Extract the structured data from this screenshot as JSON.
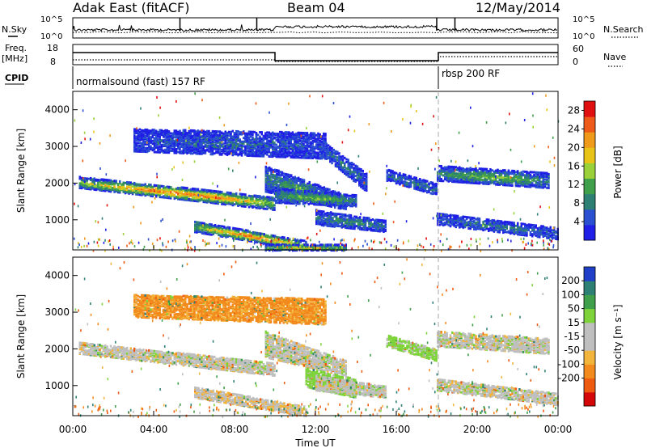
{
  "header": {
    "title_left": "Adak East (fitACF)",
    "title_center": "Beam 04",
    "title_right": "12/May/2014"
  },
  "top_panels": {
    "nsky_label": "N.Sky",
    "nsearch_label": "N.Search",
    "nsky_ticks": [
      "10^5",
      "10^0"
    ],
    "nsearch_ticks": [
      "10^5",
      "10^0"
    ],
    "freq_label": "Freq.",
    "freq_unit": "[MHz]",
    "freq_ticks": [
      "18",
      "8"
    ],
    "nave_label": "Nave",
    "nave_ticks": [
      "60",
      "0"
    ],
    "cpid_label": "CPID",
    "cpid_modes": [
      {
        "name": "normalsound (fast) 157 RF",
        "start_hour": 0
      },
      {
        "name": "rbsp 200 RF",
        "start_hour": 18
      }
    ]
  },
  "x_axis": {
    "label": "Time UT",
    "ticks": [
      "00:00",
      "04:00",
      "08:00",
      "12:00",
      "16:00",
      "20:00",
      "00:00"
    ],
    "range_hours": [
      0,
      24
    ]
  },
  "chart_data": [
    {
      "type": "heatmap",
      "name": "power",
      "ylabel": "Slant Range [km]",
      "yticks": [
        "4000",
        "3000",
        "2000",
        "1000"
      ],
      "ylim": [
        180,
        4500
      ],
      "colorbar_label": "Power [dB]",
      "colorbar_ticks": [
        "28",
        "24",
        "20",
        "16",
        "12",
        "8",
        "4"
      ],
      "colorbar_range": [
        0,
        30
      ],
      "colors": [
        "#1f1fe6",
        "#2a4fd0",
        "#2e7f74",
        "#3f9f4a",
        "#9ad13b",
        "#e8c418",
        "#f09a1c",
        "#ee5a1a",
        "#e01010"
      ],
      "bands": [
        {
          "t0": 0.3,
          "t1": 10.0,
          "r0": 1900,
          "r1": 2200,
          "r_end0": 1300,
          "r_end1": 1650,
          "peak": 26
        },
        {
          "t0": 3.0,
          "t1": 12.5,
          "r0": 2900,
          "r1": 3500,
          "r_end0": 2700,
          "r_end1": 3400,
          "peak": 6
        },
        {
          "t0": 6.0,
          "t1": 11.5,
          "r0": 700,
          "r1": 1000,
          "r_end0": 200,
          "r_end1": 450,
          "peak": 24
        },
        {
          "t0": 9.5,
          "t1": 13.5,
          "r0": 1800,
          "r1": 2500,
          "r_end0": 1300,
          "r_end1": 1700,
          "peak": 12
        },
        {
          "t0": 10.0,
          "t1": 14.0,
          "r0": 1500,
          "r1": 1900,
          "r_end0": 1400,
          "r_end1": 1700,
          "peak": 14
        },
        {
          "t0": 12.5,
          "t1": 14.5,
          "r0": 2700,
          "r1": 3100,
          "r_end0": 1800,
          "r_end1": 2300,
          "peak": 8
        },
        {
          "t0": 12.0,
          "t1": 15.5,
          "r0": 900,
          "r1": 1300,
          "r_end0": 700,
          "r_end1": 1000,
          "peak": 10
        },
        {
          "t0": 15.5,
          "t1": 18.0,
          "r0": 2100,
          "r1": 2400,
          "r_end0": 1700,
          "r_end1": 2000,
          "peak": 8
        },
        {
          "t0": 18.0,
          "t1": 23.5,
          "r0": 2100,
          "r1": 2500,
          "r_end0": 1900,
          "r_end1": 2300,
          "peak": 14
        },
        {
          "t0": 18.0,
          "t1": 24.0,
          "r0": 900,
          "r1": 1200,
          "r_end0": 500,
          "r_end1": 800,
          "peak": 8
        },
        {
          "t0": 9.5,
          "t1": 13.5,
          "r0": 200,
          "r1": 350,
          "r_end0": 200,
          "r_end1": 350,
          "peak": 18
        }
      ]
    },
    {
      "type": "heatmap",
      "name": "velocity",
      "ylabel": "Slant Range [km]",
      "yticks": [
        "4000",
        "3000",
        "2000",
        "1000"
      ],
      "ylim": [
        180,
        4500
      ],
      "colorbar_label": "Velocity [m s⁻¹]",
      "colorbar_ticks": [
        "200",
        "100",
        "50",
        "15",
        "-15",
        "-50",
        "-100",
        "-200"
      ],
      "colorbar_range": [
        -250,
        250
      ],
      "colors": [
        "#d40808",
        "#ee5a10",
        "#f28a1e",
        "#f2b43a",
        "#bfbfbf",
        "#bfbfbf",
        "#7fd33a",
        "#3f9f4a",
        "#2e7f74",
        "#1f3fc8"
      ],
      "bands": [
        {
          "t0": 0.3,
          "t1": 10.0,
          "r0": 1900,
          "r1": 2200,
          "r_end0": 1300,
          "r_end1": 1650,
          "vel": 0
        },
        {
          "t0": 3.0,
          "t1": 12.5,
          "r0": 2900,
          "r1": 3500,
          "r_end0": 2700,
          "r_end1": 3400,
          "vel": -60
        },
        {
          "t0": 6.0,
          "t1": 11.5,
          "r0": 700,
          "r1": 1000,
          "r_end0": 200,
          "r_end1": 450,
          "vel": -10
        },
        {
          "t0": 9.5,
          "t1": 13.5,
          "r0": 1800,
          "r1": 2500,
          "r_end0": 1300,
          "r_end1": 1700,
          "vel": 0
        },
        {
          "t0": 11.5,
          "t1": 14.0,
          "r0": 1000,
          "r1": 1500,
          "r_end0": 700,
          "r_end1": 1200,
          "vel": 30
        },
        {
          "t0": 12.0,
          "t1": 15.5,
          "r0": 900,
          "r1": 1300,
          "r_end0": 700,
          "r_end1": 1000,
          "vel": 0
        },
        {
          "t0": 15.5,
          "t1": 18.0,
          "r0": 2100,
          "r1": 2400,
          "r_end0": 1700,
          "r_end1": 2000,
          "vel": 25
        },
        {
          "t0": 18.0,
          "t1": 23.5,
          "r0": 2100,
          "r1": 2500,
          "r_end0": 1900,
          "r_end1": 2300,
          "vel": 0
        },
        {
          "t0": 18.0,
          "t1": 24.0,
          "r0": 900,
          "r1": 1200,
          "r_end0": 500,
          "r_end1": 800,
          "vel": 0
        }
      ]
    }
  ]
}
